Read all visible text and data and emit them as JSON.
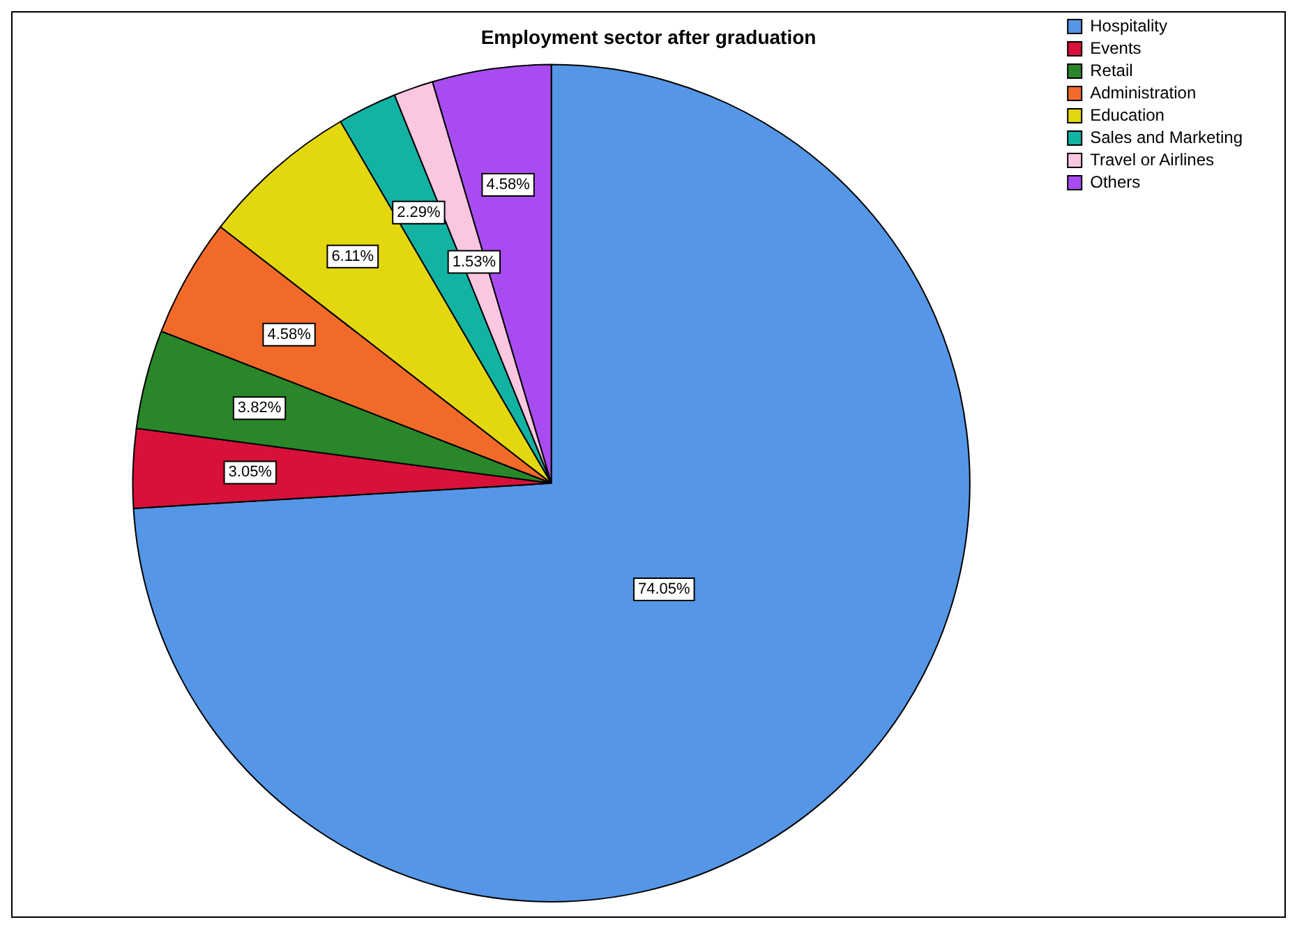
{
  "chart_data": {
    "type": "pie",
    "title": "Employment sector after graduation",
    "categories": [
      "Hospitality",
      "Events",
      "Retail",
      "Administration",
      "Education",
      "Sales and Marketing",
      "Travel or Airlines",
      "Others"
    ],
    "values": [
      74.05,
      3.05,
      3.82,
      4.58,
      6.11,
      2.29,
      1.53,
      4.58
    ],
    "value_labels": [
      "74.05%",
      "3.05%",
      "3.82%",
      "4.58%",
      "6.11%",
      "2.29%",
      "1.53%",
      "4.58%"
    ],
    "colors": [
      "#5596e6",
      "#d7113a",
      "#2a862a",
      "#f26a2a",
      "#e3d70f",
      "#12b3a2",
      "#fbc6e0",
      "#a84cf2"
    ],
    "legend": "top right"
  }
}
